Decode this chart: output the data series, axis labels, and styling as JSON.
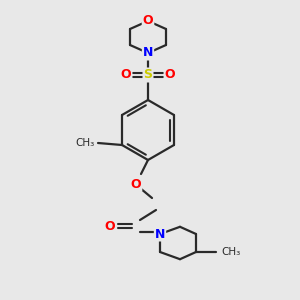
{
  "bg_color": "#e8e8e8",
  "bond_color": "#2a2a2a",
  "atom_colors": {
    "O": "#ff0000",
    "N": "#0000ff",
    "S": "#cccc00",
    "C": "#2a2a2a"
  },
  "figsize": [
    3.0,
    3.0
  ],
  "dpi": 100
}
